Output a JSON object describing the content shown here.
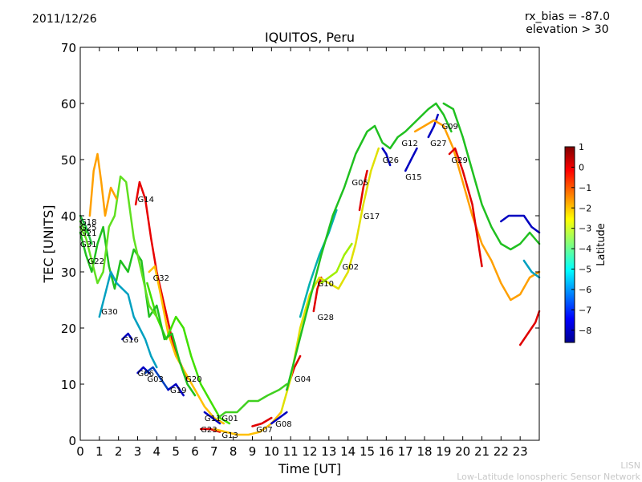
{
  "header": {
    "date": "2011/12/26",
    "rx_bias": "rx_bias = -87.0",
    "elevation": "elevation > 30",
    "title": "IQUITOS, Peru"
  },
  "footer": {
    "line1": "LISN",
    "line2": "Low-Latitude Ionospheric Sensor Network"
  },
  "colorbar": {
    "label": "Latitude",
    "ticks": [
      "1",
      "0",
      "−1",
      "−2",
      "−3",
      "−4",
      "−5",
      "−6",
      "−7",
      "−8"
    ],
    "range": [
      -8.6,
      1
    ],
    "colormap": "jet"
  },
  "chart_data": {
    "type": "line",
    "title": "IQUITOS, Peru",
    "xlabel": "Time [UT]",
    "ylabel": "TEC [UNITS]",
    "xlim": [
      0,
      24
    ],
    "ylim": [
      0,
      70
    ],
    "xticks": [
      0,
      1,
      2,
      3,
      4,
      5,
      6,
      7,
      8,
      9,
      10,
      11,
      12,
      13,
      14,
      15,
      16,
      17,
      18,
      19,
      20,
      21,
      22,
      23
    ],
    "yticks": [
      0,
      10,
      20,
      30,
      40,
      50,
      60,
      70
    ],
    "grid": false,
    "series": [
      {
        "name": "G14",
        "label_at": [
          3.0,
          43
        ],
        "color": "#e80000",
        "points": [
          [
            2.9,
            42
          ],
          [
            3.1,
            46
          ],
          [
            3.4,
            43
          ],
          [
            3.7,
            36
          ],
          [
            4.0,
            30
          ],
          [
            4.4,
            24
          ],
          [
            4.8,
            18
          ],
          [
            5.2,
            14
          ],
          [
            5.6,
            11
          ]
        ]
      },
      {
        "name": "G32",
        "label_at": [
          3.8,
          29
        ],
        "color": "#ffc000",
        "points": [
          [
            3.6,
            30
          ],
          [
            3.9,
            31
          ],
          [
            4.2,
            26
          ],
          [
            4.6,
            19
          ],
          [
            5.0,
            15
          ],
          [
            5.5,
            12
          ],
          [
            6.0,
            9
          ],
          [
            6.5,
            6
          ],
          [
            7.0,
            4
          ],
          [
            7.5,
            3
          ]
        ]
      },
      {
        "name": "G20",
        "label_at": [
          5.5,
          11
        ],
        "color": "#40e000",
        "points": [
          [
            3.5,
            28
          ],
          [
            4.0,
            22
          ],
          [
            4.5,
            18
          ],
          [
            5.0,
            22
          ],
          [
            5.4,
            20
          ],
          [
            5.8,
            15
          ],
          [
            6.3,
            10
          ],
          [
            6.8,
            7
          ],
          [
            7.3,
            4
          ],
          [
            7.8,
            3
          ]
        ]
      },
      {
        "name": "G22",
        "label_at": [
          0.4,
          32
        ],
        "color": "#20c020",
        "points": [
          [
            0.0,
            37
          ],
          [
            0.3,
            33
          ],
          [
            0.6,
            30
          ],
          [
            0.9,
            35
          ],
          [
            1.2,
            38
          ],
          [
            1.5,
            31
          ],
          [
            1.8,
            27
          ],
          [
            2.1,
            32
          ],
          [
            2.5,
            30
          ],
          [
            2.8,
            34
          ],
          [
            3.2,
            32
          ],
          [
            3.6,
            22
          ],
          [
            4.0,
            24
          ],
          [
            4.4,
            18
          ],
          [
            4.8,
            19
          ],
          [
            5.2,
            14
          ],
          [
            5.6,
            10
          ],
          [
            6.0,
            8
          ]
        ]
      },
      {
        "name": "G31",
        "label_at": [
          0.0,
          35
        ],
        "color": "#60e020",
        "points": [
          [
            0.0,
            38
          ],
          [
            0.3,
            36
          ],
          [
            0.6,
            32
          ],
          [
            0.9,
            28
          ],
          [
            1.2,
            30
          ],
          [
            1.5,
            38
          ],
          [
            1.8,
            40
          ],
          [
            2.1,
            47
          ],
          [
            2.4,
            46
          ],
          [
            2.8,
            36
          ],
          [
            3.2,
            30
          ],
          [
            3.6,
            24
          ],
          [
            4.0,
            22
          ]
        ]
      },
      {
        "name": "G30",
        "label_at": [
          1.1,
          23
        ],
        "color": "#00a0c0",
        "points": [
          [
            1.0,
            22
          ],
          [
            1.3,
            26
          ],
          [
            1.6,
            30
          ],
          [
            1.9,
            28
          ],
          [
            2.2,
            27
          ],
          [
            2.5,
            26
          ],
          [
            2.8,
            22
          ],
          [
            3.1,
            20
          ],
          [
            3.4,
            18
          ],
          [
            3.7,
            15
          ],
          [
            4.0,
            13
          ]
        ]
      },
      {
        "name": "G16",
        "label_at": [
          2.2,
          18
        ],
        "color": "#0000c0",
        "points": [
          [
            2.2,
            18
          ],
          [
            2.5,
            19
          ],
          [
            2.7,
            18
          ]
        ]
      },
      {
        "name": "G06",
        "label_at": [
          3.0,
          12
        ],
        "color": "#0000c0",
        "points": [
          [
            3.0,
            12
          ],
          [
            3.3,
            13
          ],
          [
            3.6,
            12
          ]
        ]
      },
      {
        "name": "G03",
        "label_at": [
          3.5,
          11
        ],
        "color": "#0040c0",
        "points": [
          [
            3.4,
            12
          ],
          [
            3.8,
            13
          ],
          [
            4.2,
            11
          ],
          [
            4.6,
            9
          ]
        ]
      },
      {
        "name": "G19",
        "label_at": [
          4.7,
          9
        ],
        "color": "#0000c0",
        "points": [
          [
            4.6,
            9
          ],
          [
            5.0,
            10
          ],
          [
            5.4,
            8
          ]
        ]
      },
      {
        "name": "G18",
        "label_at": [
          0.0,
          39
        ],
        "color": "#20c040",
        "points": [
          [
            0.0,
            40
          ],
          [
            0.3,
            38
          ],
          [
            0.6,
            35
          ]
        ]
      },
      {
        "name": "G25",
        "label_at": [
          0.0,
          38
        ],
        "color": "#40d020",
        "points": [
          [
            0.0,
            39
          ],
          [
            0.3,
            37
          ]
        ]
      },
      {
        "name": "G21",
        "label_at": [
          0.0,
          37
        ],
        "color": "#ffa000",
        "points": [
          [
            0.5,
            40
          ],
          [
            0.7,
            48
          ],
          [
            0.9,
            51
          ],
          [
            1.1,
            46
          ],
          [
            1.3,
            40
          ],
          [
            1.6,
            45
          ],
          [
            1.9,
            43
          ]
        ]
      },
      {
        "name": "G11",
        "label_at": [
          6.5,
          4
        ],
        "color": "#0000c0",
        "points": [
          [
            6.5,
            5
          ],
          [
            6.9,
            4
          ],
          [
            7.3,
            3
          ]
        ]
      },
      {
        "name": "G01",
        "label_at": [
          7.4,
          4
        ],
        "color": "#40d020",
        "points": [
          [
            7.2,
            4
          ],
          [
            7.6,
            5
          ],
          [
            8.2,
            5
          ],
          [
            8.8,
            7
          ],
          [
            9.3,
            7
          ],
          [
            9.8,
            8
          ],
          [
            10.4,
            9
          ],
          [
            10.8,
            10
          ]
        ]
      },
      {
        "name": "G23",
        "label_at": [
          6.3,
          2
        ],
        "color": "#e00000",
        "points": [
          [
            6.3,
            2
          ],
          [
            6.8,
            2
          ],
          [
            7.3,
            1.5
          ]
        ]
      },
      {
        "name": "G13",
        "label_at": [
          7.4,
          1
        ],
        "color": "#ffc000",
        "points": [
          [
            7.0,
            2
          ],
          [
            7.6,
            1.5
          ],
          [
            8.2,
            1
          ],
          [
            8.8,
            1
          ],
          [
            9.4,
            1.5
          ],
          [
            10.0,
            3
          ],
          [
            10.5,
            5
          ]
        ]
      },
      {
        "name": "G07",
        "label_at": [
          9.2,
          2
        ],
        "color": "#e00000",
        "points": [
          [
            9.0,
            2.5
          ],
          [
            9.5,
            3
          ],
          [
            10.0,
            4
          ]
        ]
      },
      {
        "name": "G08",
        "label_at": [
          10.2,
          3
        ],
        "color": "#0000c0",
        "points": [
          [
            10.0,
            3
          ],
          [
            10.4,
            4
          ],
          [
            10.8,
            5
          ]
        ]
      },
      {
        "name": "G04",
        "label_at": [
          11.2,
          11
        ],
        "color": "#e00000",
        "points": [
          [
            10.8,
            9
          ],
          [
            11.2,
            13
          ],
          [
            11.5,
            15
          ]
        ]
      },
      {
        "name": "G28",
        "label_at": [
          12.4,
          22
        ],
        "color": "#e00000",
        "points": [
          [
            12.2,
            23
          ],
          [
            12.4,
            27
          ],
          [
            12.6,
            29
          ]
        ]
      },
      {
        "name": "G10",
        "label_at": [
          12.4,
          28
        ],
        "color": "#e0e000",
        "points": [
          [
            10.5,
            5
          ],
          [
            11.0,
            11
          ],
          [
            11.5,
            20
          ],
          [
            12.0,
            26
          ],
          [
            12.5,
            29
          ],
          [
            13.0,
            28
          ],
          [
            13.5,
            27
          ],
          [
            14.0,
            30
          ],
          [
            14.4,
            35
          ],
          [
            14.8,
            42
          ],
          [
            15.2,
            48
          ],
          [
            15.6,
            52
          ]
        ]
      },
      {
        "name": "G02",
        "label_at": [
          13.7,
          31
        ],
        "color": "#a0f000",
        "points": [
          [
            12.6,
            28
          ],
          [
            13.0,
            29
          ],
          [
            13.4,
            30
          ],
          [
            13.8,
            33
          ],
          [
            14.2,
            35
          ]
        ]
      },
      {
        "name": "G05",
        "label_at": [
          14.2,
          46
        ],
        "color": "#00b0b0",
        "points": [
          [
            11.5,
            22
          ],
          [
            12.0,
            28
          ],
          [
            12.5,
            33
          ],
          [
            13.0,
            37
          ],
          [
            13.4,
            41
          ]
        ]
      },
      {
        "name": "G17",
        "label_at": [
          14.8,
          40
        ],
        "color": "#e00000",
        "points": [
          [
            14.6,
            41
          ],
          [
            14.8,
            45
          ],
          [
            15.0,
            48
          ]
        ]
      },
      {
        "name": "G12",
        "label_at": [
          16.8,
          53
        ],
        "color": "#20c020",
        "points": [
          [
            10.8,
            9
          ],
          [
            11.4,
            17
          ],
          [
            12.0,
            25
          ],
          [
            12.6,
            33
          ],
          [
            13.2,
            40
          ],
          [
            13.8,
            45
          ],
          [
            14.4,
            51
          ],
          [
            15.0,
            55
          ],
          [
            15.4,
            56
          ],
          [
            15.8,
            53
          ],
          [
            16.2,
            52
          ],
          [
            16.6,
            54
          ],
          [
            17.0,
            55
          ],
          [
            17.6,
            57
          ],
          [
            18.2,
            59
          ],
          [
            18.6,
            60
          ],
          [
            19.0,
            58
          ],
          [
            19.4,
            55
          ]
        ]
      },
      {
        "name": "G26",
        "label_at": [
          15.8,
          50
        ],
        "color": "#0000c0",
        "points": [
          [
            15.8,
            52
          ],
          [
            16.0,
            51
          ],
          [
            16.2,
            49
          ]
        ]
      },
      {
        "name": "G15",
        "label_at": [
          17.0,
          47
        ],
        "color": "#0000c0",
        "points": [
          [
            17.0,
            48
          ],
          [
            17.3,
            50
          ],
          [
            17.6,
            52
          ]
        ]
      },
      {
        "name": "G27",
        "label_at": [
          18.3,
          53
        ],
        "color": "#0000c0",
        "points": [
          [
            18.2,
            54
          ],
          [
            18.5,
            56
          ],
          [
            18.7,
            58
          ]
        ]
      },
      {
        "name": "G09",
        "label_at": [
          18.9,
          56
        ],
        "color": "#ffa000",
        "points": [
          [
            17.5,
            55
          ],
          [
            18.0,
            56
          ],
          [
            18.5,
            57
          ],
          [
            19.0,
            56
          ],
          [
            19.5,
            52
          ],
          [
            20.0,
            46
          ],
          [
            20.5,
            40
          ],
          [
            21.0,
            35
          ],
          [
            21.5,
            32
          ],
          [
            22.0,
            28
          ],
          [
            22.5,
            25
          ],
          [
            23.0,
            26
          ],
          [
            23.5,
            29
          ],
          [
            24.0,
            30
          ]
        ]
      },
      {
        "name": "G29",
        "label_at": [
          19.4,
          50
        ],
        "color": "#e00000",
        "points": [
          [
            19.3,
            51
          ],
          [
            19.6,
            52
          ],
          [
            20.0,
            48
          ],
          [
            20.5,
            42
          ],
          [
            21.0,
            31
          ]
        ]
      },
      {
        "name": "S1",
        "label_at": null,
        "color": "#20c020",
        "points": [
          [
            19.0,
            60
          ],
          [
            19.5,
            59
          ],
          [
            20.0,
            54
          ],
          [
            20.5,
            48
          ],
          [
            21.0,
            42
          ],
          [
            21.5,
            38
          ],
          [
            22.0,
            35
          ],
          [
            22.5,
            34
          ],
          [
            23.0,
            35
          ],
          [
            23.5,
            37
          ],
          [
            24.0,
            35
          ]
        ]
      },
      {
        "name": "S2",
        "label_at": null,
        "color": "#0000c0",
        "points": [
          [
            22.0,
            39
          ],
          [
            22.4,
            40
          ],
          [
            22.8,
            40
          ],
          [
            23.2,
            40
          ],
          [
            23.6,
            38
          ],
          [
            24.0,
            37
          ]
        ]
      },
      {
        "name": "S3",
        "label_at": null,
        "color": "#e00000",
        "points": [
          [
            23.0,
            17
          ],
          [
            23.4,
            19
          ],
          [
            23.8,
            21
          ],
          [
            24.0,
            23
          ]
        ]
      },
      {
        "name": "S4",
        "label_at": null,
        "color": "#00a0c0",
        "points": [
          [
            23.2,
            32
          ],
          [
            23.6,
            30
          ],
          [
            24.0,
            29
          ]
        ]
      }
    ]
  }
}
